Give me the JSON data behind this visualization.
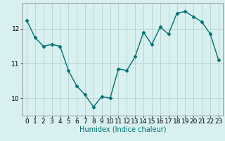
{
  "x": [
    0,
    1,
    2,
    3,
    4,
    5,
    6,
    7,
    8,
    9,
    10,
    11,
    12,
    13,
    14,
    15,
    16,
    17,
    18,
    19,
    20,
    21,
    22,
    23
  ],
  "y": [
    12.25,
    11.75,
    11.5,
    11.55,
    11.5,
    10.8,
    10.35,
    10.1,
    9.75,
    10.05,
    10.0,
    10.85,
    10.8,
    11.2,
    11.9,
    11.55,
    12.05,
    11.85,
    12.45,
    12.5,
    12.35,
    12.2,
    11.85,
    11.1
  ],
  "line_color": "#007070",
  "marker": "D",
  "markersize": 2.5,
  "linewidth": 1.0,
  "bg_color": "#d8f0f0",
  "grid_color": "#b0c8c8",
  "xlabel": "Humidex (Indice chaleur)",
  "xlim": [
    -0.5,
    23.5
  ],
  "ylim": [
    9.5,
    12.75
  ],
  "yticks": [
    10,
    11,
    12
  ],
  "xticks": [
    0,
    1,
    2,
    3,
    4,
    5,
    6,
    7,
    8,
    9,
    10,
    11,
    12,
    13,
    14,
    15,
    16,
    17,
    18,
    19,
    20,
    21,
    22,
    23
  ],
  "xlabel_fontsize": 7,
  "tick_fontsize": 6.5
}
